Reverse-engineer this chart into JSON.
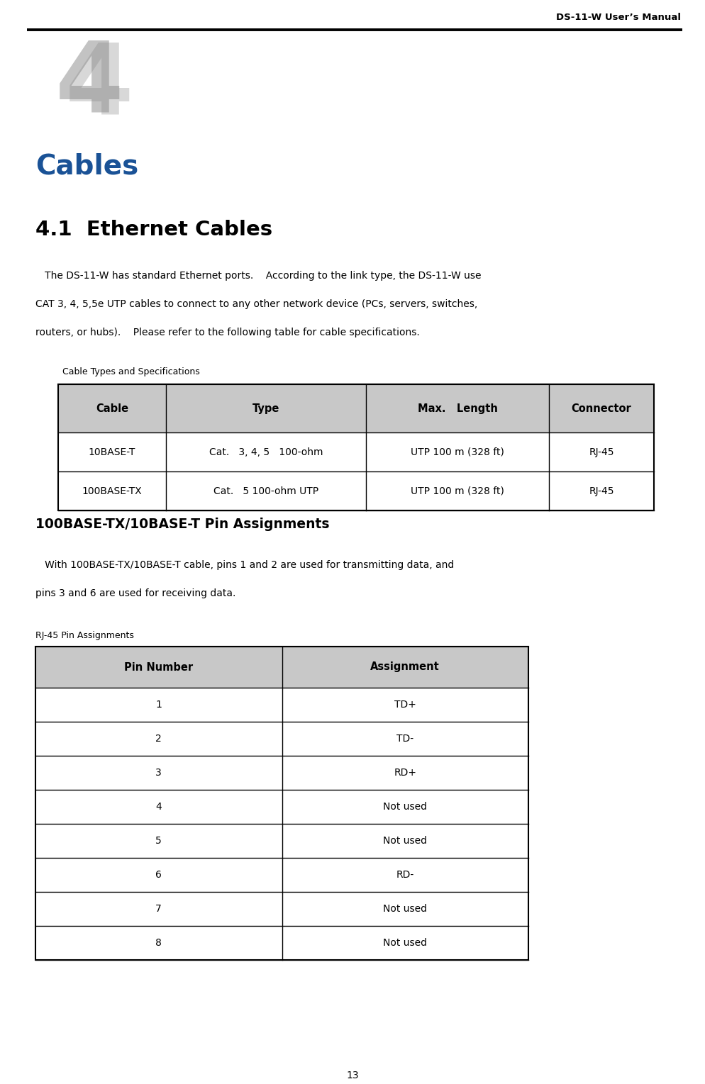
{
  "page_title": "DS-11-W User’s Manual",
  "chapter_number": "4",
  "chapter_title": "Cables",
  "section_title": "4.1  Ethernet Cables",
  "para1_line1": "   The DS-11-W has standard Ethernet ports.    According to the link type, the DS-11-W use",
  "para1_line2": "CAT 3, 4, 5,5e UTP cables to connect to any other network device (PCs, servers, switches,",
  "para1_line3": "routers, or hubs).    Please refer to the following table for cable specifications.",
  "table1_caption": "Cable Types and Specifications",
  "table1_headers": [
    "Cable",
    "Type",
    "Max.   Length",
    "Connector"
  ],
  "table1_rows": [
    [
      "10BASE-T",
      "Cat.   3, 4, 5   100-ohm",
      "UTP 100 m (328 ft)",
      "RJ-45"
    ],
    [
      "100BASE-TX",
      "Cat.   5 100-ohm UTP",
      "UTP 100 m (328 ft)",
      "RJ-45"
    ]
  ],
  "section2_title": "100BASE-TX/10BASE-T Pin Assignments",
  "para2_line1": "   With 100BASE-TX/10BASE-T cable, pins 1 and 2 are used for transmitting data, and",
  "para2_line2": "pins 3 and 6 are used for receiving data.",
  "table2_caption": "RJ-45 Pin Assignments",
  "table2_headers": [
    "Pin Number",
    "Assignment"
  ],
  "table2_rows": [
    [
      "1",
      "TD+"
    ],
    [
      "2",
      "TD-"
    ],
    [
      "3",
      "RD+"
    ],
    [
      "4",
      "Not used"
    ],
    [
      "5",
      "Not used"
    ],
    [
      "6",
      "RD-"
    ],
    [
      "7",
      "Not used"
    ],
    [
      "8",
      "Not used"
    ]
  ],
  "page_number": "13",
  "bg_color": "#ffffff",
  "header_bg": "#c8c8c8",
  "chapter_color": "#1a5296"
}
